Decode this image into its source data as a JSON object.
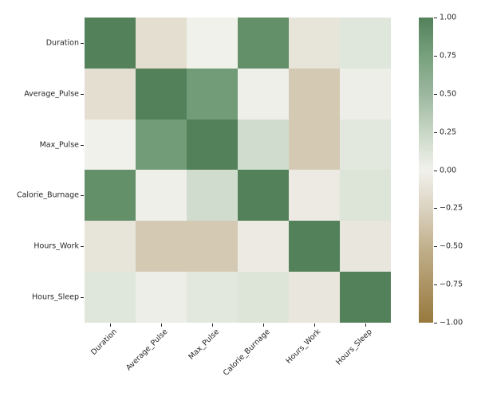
{
  "figure": {
    "background": "#ffffff",
    "text_color": "#262626"
  },
  "chart_data": {
    "type": "heatmap",
    "title": "",
    "description": "Correlation matrix heatmap of health data",
    "categories": [
      "Duration",
      "Average_Pulse",
      "Max_Pulse",
      "Calorie_Burnage",
      "Hours_Work",
      "Hours_Sleep"
    ],
    "x_categories": [
      "Duration",
      "Average_Pulse",
      "Max_Pulse",
      "Calorie_Burnage",
      "Hours_Work",
      "Hours_Sleep"
    ],
    "matrix": [
      [
        1.0,
        -0.16,
        0.0,
        0.89,
        -0.11,
        0.11
      ],
      [
        -0.16,
        1.0,
        0.79,
        0.02,
        -0.32,
        0.03
      ],
      [
        0.0,
        0.79,
        1.0,
        0.2,
        -0.32,
        0.09
      ],
      [
        0.89,
        0.02,
        0.2,
        1.0,
        -0.06,
        0.12
      ],
      [
        -0.11,
        -0.32,
        -0.32,
        -0.06,
        1.0,
        -0.09
      ],
      [
        0.11,
        0.03,
        0.09,
        0.12,
        -0.09,
        1.0
      ]
    ],
    "vmin": -1,
    "vmax": 1,
    "grid": false,
    "legend_position": "right-colorbar",
    "colorbar": {
      "tick_labels": [
        "1.00",
        "0.75",
        "0.50",
        "0.25",
        "0.00",
        "−0.25",
        "−0.50",
        "−0.75",
        "−1.00"
      ],
      "tick_values": [
        1,
        0.75,
        0.5,
        0.25,
        0,
        -0.25,
        -0.5,
        -0.75,
        -1
      ]
    },
    "colormap_stops": [
      {
        "v": -1.0,
        "c": "#97793d"
      },
      {
        "v": -0.75,
        "c": "#ad9465"
      },
      {
        "v": -0.5,
        "c": "#c2b18e"
      },
      {
        "v": -0.25,
        "c": "#dbd3c1"
      },
      {
        "v": 0.0,
        "c": "#f1f1ec"
      },
      {
        "v": 0.25,
        "c": "#c8d7c5"
      },
      {
        "v": 0.5,
        "c": "#9cb79f"
      },
      {
        "v": 0.75,
        "c": "#77a17d"
      },
      {
        "v": 1.0,
        "c": "#53815a"
      }
    ]
  }
}
